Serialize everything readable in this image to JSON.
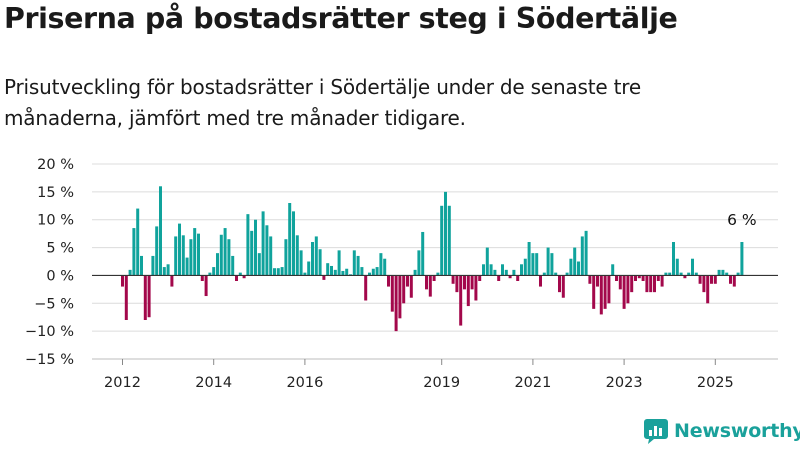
{
  "header": {
    "title": "Priserna på bostadsrätter steg i Södertälje",
    "subtitle": "Prisutveckling för bostadsrätter i Södertälje under de senaste tre månaderna, jämfört med tre månader tidigare."
  },
  "brand": {
    "name": "Newsworthy",
    "color": "#1aa19b"
  },
  "chart_data": {
    "type": "bar",
    "title": "Priserna på bostadsrätter steg i Södertälje",
    "subtitle": "Prisutveckling för bostadsrätter i Södertälje under de senaste tre månaderna, jämfört med tre månader tidigare.",
    "xlabel": "",
    "ylabel": "",
    "ylim": [
      -15,
      20
    ],
    "yticks": [
      -15,
      -10,
      -5,
      0,
      5,
      10,
      15,
      20
    ],
    "ytick_labels": [
      "−15 %",
      "−10 %",
      "−5 %",
      "0 %",
      "5 %",
      "10 %",
      "15 %",
      "20 %"
    ],
    "xticks": [
      2012,
      2014,
      2016,
      2019,
      2021,
      2023,
      2025
    ],
    "xtick_labels": [
      "2012",
      "2014",
      "2016",
      "2019",
      "2021",
      "2023",
      "2025"
    ],
    "start": "2012-01",
    "positive_color": "#10a39c",
    "negative_color": "#a3084b",
    "grid": true,
    "annotation": {
      "text": "6 %",
      "month": "2025-08",
      "value": 6
    },
    "values": [
      -2,
      -8,
      1,
      8.5,
      12,
      3.5,
      -8,
      -7.5,
      3.5,
      8.8,
      16,
      1.5,
      2,
      -2,
      7,
      9.3,
      7.2,
      3.2,
      6.5,
      8.5,
      7.5,
      -1,
      -3.7,
      0.5,
      1.5,
      4,
      7.3,
      8.5,
      6.5,
      3.5,
      -1,
      0.5,
      -0.5,
      11,
      8,
      10,
      4,
      11.5,
      9,
      7,
      1.3,
      1.3,
      1.5,
      6.5,
      13,
      11.5,
      7.2,
      4.5,
      0.5,
      2.5,
      6,
      7,
      4.7,
      -0.8,
      2.2,
      1.7,
      1,
      4.5,
      0.8,
      1.2,
      0.2,
      4.5,
      3.5,
      1.5,
      -4.5,
      0.5,
      1.2,
      1.5,
      4,
      3,
      -2,
      -6.5,
      -10,
      -7.7,
      -5,
      -2,
      -4,
      1,
      4.5,
      7.8,
      -2.5,
      -3.8,
      -1,
      0.5,
      12.5,
      15,
      12.5,
      -1.5,
      -3,
      -9,
      -2.5,
      -5.5,
      -2.5,
      -4.5,
      -1,
      2,
      5,
      2,
      1,
      -1,
      2,
      1,
      -0.5,
      1,
      -1,
      2,
      3,
      6,
      4,
      4,
      -2,
      0.5,
      5,
      4,
      0.5,
      -3,
      -4,
      0.5,
      3,
      5,
      2.5,
      7,
      8,
      -1.5,
      -6,
      -2,
      -7,
      -6,
      -5,
      2,
      -1,
      -2.5,
      -6,
      -5,
      -3,
      -1,
      -0.5,
      -1,
      -3,
      -3,
      -3,
      -1,
      -2,
      0.5,
      0.5,
      6,
      3,
      0.5,
      -0.5,
      0.5,
      3,
      0.5,
      -1.5,
      -3,
      -5,
      -1.5,
      -1.5,
      1,
      1,
      0.5,
      -1.5,
      -2,
      0.5,
      6
    ]
  }
}
